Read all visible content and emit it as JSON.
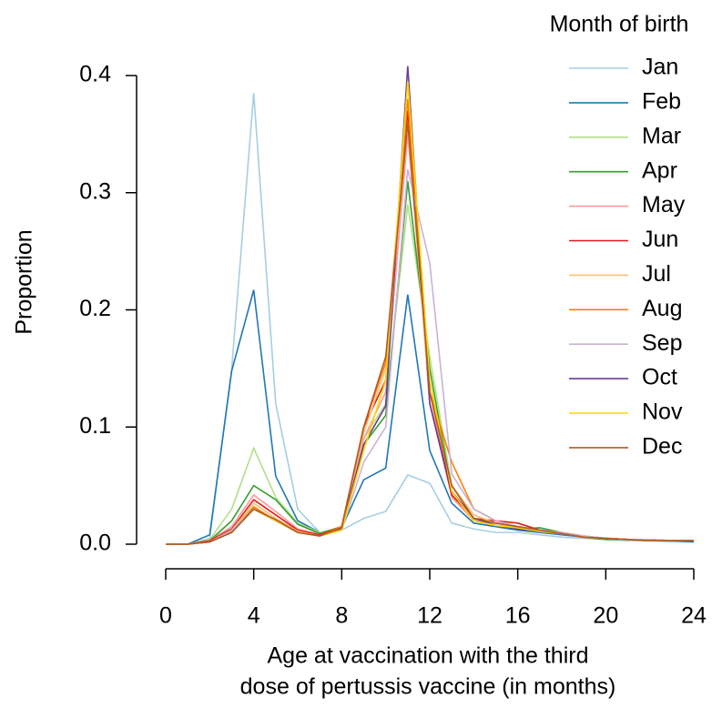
{
  "chart_data": {
    "type": "line",
    "xlabel": [
      "Age at vaccination with the third",
      "dose of pertussis vaccine (in months)"
    ],
    "ylabel": "Proportion",
    "legend_title": "Month of birth",
    "legend_position": "top-right",
    "x": [
      0,
      1,
      2,
      3,
      4,
      5,
      6,
      7,
      8,
      9,
      10,
      11,
      12,
      13,
      14,
      15,
      16,
      17,
      18,
      19,
      20,
      21,
      22,
      23,
      24
    ],
    "xlim": [
      0,
      24
    ],
    "xticks": [
      0,
      4,
      8,
      12,
      16,
      20,
      24
    ],
    "ylim": [
      0,
      0.4
    ],
    "yticks": [
      {
        "value": 0,
        "label": "0.0"
      },
      0.1,
      0.2,
      0.3,
      0.4
    ],
    "series": [
      {
        "name": "Jan",
        "color": "#a6cee3",
        "values": [
          0,
          0,
          0.005,
          0.15,
          0.385,
          0.12,
          0.03,
          0.01,
          0.012,
          0.022,
          0.028,
          0.059,
          0.052,
          0.018,
          0.013,
          0.01,
          0.01,
          0.008,
          0.006,
          0.005,
          0.004,
          0.003,
          0.003,
          0.002,
          0.002
        ]
      },
      {
        "name": "Feb",
        "color": "#1f78b4",
        "values": [
          0,
          0,
          0.008,
          0.148,
          0.217,
          0.058,
          0.02,
          0.01,
          0.014,
          0.055,
          0.065,
          0.213,
          0.08,
          0.035,
          0.018,
          0.015,
          0.012,
          0.01,
          0.008,
          0.006,
          0.005,
          0.004,
          0.003,
          0.003,
          0.002
        ]
      },
      {
        "name": "Mar",
        "color": "#b2df8a",
        "values": [
          0,
          0,
          0.004,
          0.03,
          0.082,
          0.04,
          0.018,
          0.01,
          0.014,
          0.09,
          0.12,
          0.29,
          0.16,
          0.05,
          0.025,
          0.018,
          0.014,
          0.012,
          0.009,
          0.006,
          0.005,
          0.004,
          0.003,
          0.003,
          0.003
        ]
      },
      {
        "name": "Apr",
        "color": "#33a02c",
        "values": [
          0,
          0,
          0.003,
          0.02,
          0.05,
          0.038,
          0.017,
          0.009,
          0.015,
          0.085,
          0.11,
          0.31,
          0.15,
          0.045,
          0.022,
          0.016,
          0.013,
          0.014,
          0.01,
          0.006,
          0.004,
          0.004,
          0.003,
          0.003,
          0.003
        ]
      },
      {
        "name": "May",
        "color": "#fb9a99",
        "values": [
          0,
          0,
          0.003,
          0.015,
          0.042,
          0.028,
          0.013,
          0.008,
          0.015,
          0.09,
          0.13,
          0.35,
          0.13,
          0.04,
          0.02,
          0.018,
          0.015,
          0.012,
          0.009,
          0.006,
          0.005,
          0.004,
          0.004,
          0.003,
          0.003
        ]
      },
      {
        "name": "Jun",
        "color": "#e31a1c",
        "values": [
          0,
          0,
          0.003,
          0.013,
          0.038,
          0.025,
          0.012,
          0.008,
          0.015,
          0.1,
          0.14,
          0.37,
          0.12,
          0.042,
          0.022,
          0.02,
          0.018,
          0.012,
          0.01,
          0.007,
          0.005,
          0.004,
          0.004,
          0.003,
          0.003
        ]
      },
      {
        "name": "Jul",
        "color": "#fdbf6f",
        "values": [
          0,
          0,
          0.002,
          0.012,
          0.035,
          0.022,
          0.011,
          0.007,
          0.014,
          0.095,
          0.15,
          0.36,
          0.12,
          0.05,
          0.025,
          0.018,
          0.014,
          0.011,
          0.009,
          0.006,
          0.005,
          0.004,
          0.003,
          0.003,
          0.003
        ]
      },
      {
        "name": "Aug",
        "color": "#ff7f00",
        "values": [
          0,
          0,
          0.002,
          0.011,
          0.032,
          0.02,
          0.01,
          0.007,
          0.015,
          0.1,
          0.155,
          0.38,
          0.13,
          0.07,
          0.03,
          0.02,
          0.015,
          0.012,
          0.01,
          0.007,
          0.005,
          0.004,
          0.004,
          0.003,
          0.003
        ]
      },
      {
        "name": "Sep",
        "color": "#cab2d6",
        "values": [
          0,
          0,
          0.002,
          0.012,
          0.03,
          0.02,
          0.01,
          0.007,
          0.012,
          0.07,
          0.1,
          0.32,
          0.24,
          0.06,
          0.03,
          0.02,
          0.015,
          0.012,
          0.01,
          0.007,
          0.005,
          0.004,
          0.004,
          0.003,
          0.003
        ]
      },
      {
        "name": "Oct",
        "color": "#6a3d9a",
        "values": [
          0,
          0,
          0.002,
          0.01,
          0.03,
          0.02,
          0.01,
          0.007,
          0.013,
          0.085,
          0.118,
          0.408,
          0.12,
          0.045,
          0.022,
          0.016,
          0.013,
          0.011,
          0.009,
          0.006,
          0.005,
          0.004,
          0.003,
          0.003,
          0.003
        ]
      },
      {
        "name": "Nov",
        "color": "#ffd700",
        "values": [
          0,
          0,
          0.002,
          0.01,
          0.03,
          0.02,
          0.01,
          0.007,
          0.012,
          0.08,
          0.14,
          0.395,
          0.14,
          0.045,
          0.02,
          0.016,
          0.014,
          0.011,
          0.009,
          0.006,
          0.005,
          0.004,
          0.003,
          0.003,
          0.003
        ]
      },
      {
        "name": "Dec",
        "color": "#b15928",
        "values": [
          0,
          0,
          0.002,
          0.01,
          0.03,
          0.021,
          0.01,
          0.007,
          0.014,
          0.1,
          0.16,
          0.36,
          0.13,
          0.05,
          0.022,
          0.018,
          0.015,
          0.012,
          0.009,
          0.006,
          0.005,
          0.004,
          0.003,
          0.003,
          0.003
        ]
      }
    ]
  }
}
